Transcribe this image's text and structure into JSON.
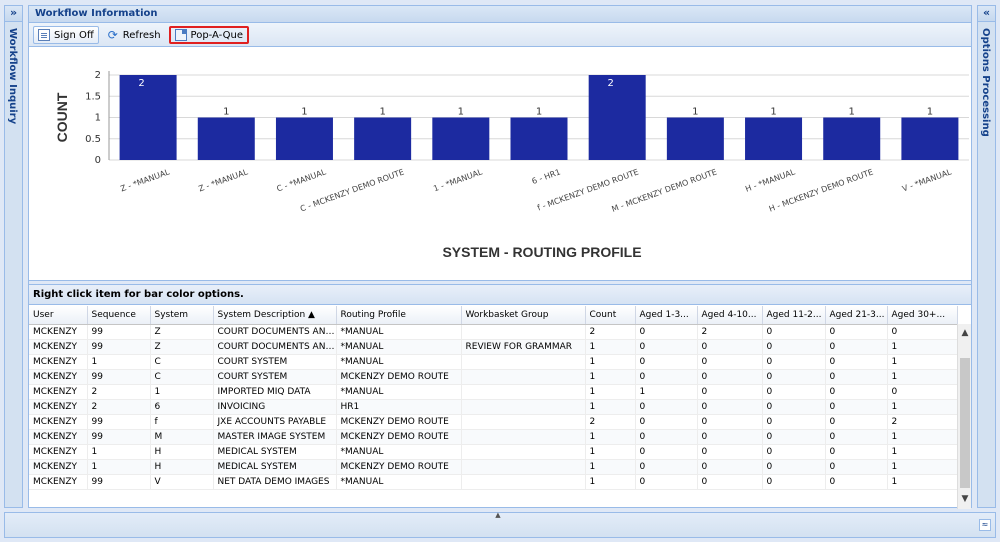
{
  "left_panel": {
    "title": "Workflow Inquiry",
    "toggle": "»"
  },
  "right_panel": {
    "title": "Options Processing",
    "toggle": "«"
  },
  "main": {
    "title": "Workflow Information",
    "toolbar": {
      "sign_off": "Sign Off",
      "refresh": "Refresh",
      "pop_a_que": "Pop-A-Que"
    }
  },
  "chart_data": {
    "type": "bar",
    "ylabel": "COUNT",
    "xlabel": "SYSTEM - ROUTING PROFILE",
    "ylim": [
      0,
      2
    ],
    "yticks": [
      "0",
      "0.5",
      "1",
      "1.5",
      "2"
    ],
    "bar_color": "#1c2aa0",
    "categories": [
      "Z - *MANUAL",
      "Z - *MANUAL",
      "C - *MANUAL",
      "C - MCKENZY DEMO ROUTE",
      "1 - *MANUAL",
      "6 - HR1",
      "f - MCKENZY DEMO ROUTE",
      "M - MCKENZY DEMO ROUTE",
      "H - *MANUAL",
      "H - MCKENZY DEMO ROUTE",
      "V - *MANUAL"
    ],
    "values": [
      2,
      1,
      1,
      1,
      1,
      1,
      2,
      1,
      1,
      1,
      1
    ]
  },
  "grid": {
    "caption": "Right click item for bar color options.",
    "columns": [
      "User",
      "Sequence",
      "System",
      "System Description ▲",
      "Routing Profile",
      "Workbasket Group",
      "Count",
      "Aged 1-3...",
      "Aged 4-10...",
      "Aged 11-2...",
      "Aged 21-3...",
      "Aged 30+..."
    ],
    "rows": [
      [
        "MCKENZY",
        "99",
        "Z",
        "COURT DOCUMENTS AND...",
        "*MANUAL",
        "",
        "2",
        "0",
        "2",
        "0",
        "0",
        "0"
      ],
      [
        "MCKENZY",
        "99",
        "Z",
        "COURT DOCUMENTS AND...",
        "*MANUAL",
        "REVIEW FOR GRAMMAR",
        "1",
        "0",
        "0",
        "0",
        "0",
        "1"
      ],
      [
        "MCKENZY",
        "1",
        "C",
        "COURT SYSTEM",
        "*MANUAL",
        "",
        "1",
        "0",
        "0",
        "0",
        "0",
        "1"
      ],
      [
        "MCKENZY",
        "99",
        "C",
        "COURT SYSTEM",
        "MCKENZY DEMO ROUTE",
        "",
        "1",
        "0",
        "0",
        "0",
        "0",
        "1"
      ],
      [
        "MCKENZY",
        "2",
        "1",
        "IMPORTED MIQ DATA",
        "*MANUAL",
        "",
        "1",
        "1",
        "0",
        "0",
        "0",
        "0"
      ],
      [
        "MCKENZY",
        "2",
        "6",
        "INVOICING",
        "HR1",
        "",
        "1",
        "0",
        "0",
        "0",
        "0",
        "1"
      ],
      [
        "MCKENZY",
        "99",
        "f",
        "JXE ACCOUNTS PAYABLE",
        "MCKENZY DEMO ROUTE",
        "",
        "2",
        "0",
        "0",
        "0",
        "0",
        "2"
      ],
      [
        "MCKENZY",
        "99",
        "M",
        "MASTER IMAGE SYSTEM",
        "MCKENZY DEMO ROUTE",
        "",
        "1",
        "0",
        "0",
        "0",
        "0",
        "1"
      ],
      [
        "MCKENZY",
        "1",
        "H",
        "MEDICAL SYSTEM",
        "*MANUAL",
        "",
        "1",
        "0",
        "0",
        "0",
        "0",
        "1"
      ],
      [
        "MCKENZY",
        "1",
        "H",
        "MEDICAL SYSTEM",
        "MCKENZY DEMO ROUTE",
        "",
        "1",
        "0",
        "0",
        "0",
        "0",
        "1"
      ],
      [
        "MCKENZY",
        "99",
        "V",
        "NET DATA DEMO IMAGES",
        "*MANUAL",
        "",
        "1",
        "0",
        "0",
        "0",
        "0",
        "1"
      ]
    ]
  }
}
